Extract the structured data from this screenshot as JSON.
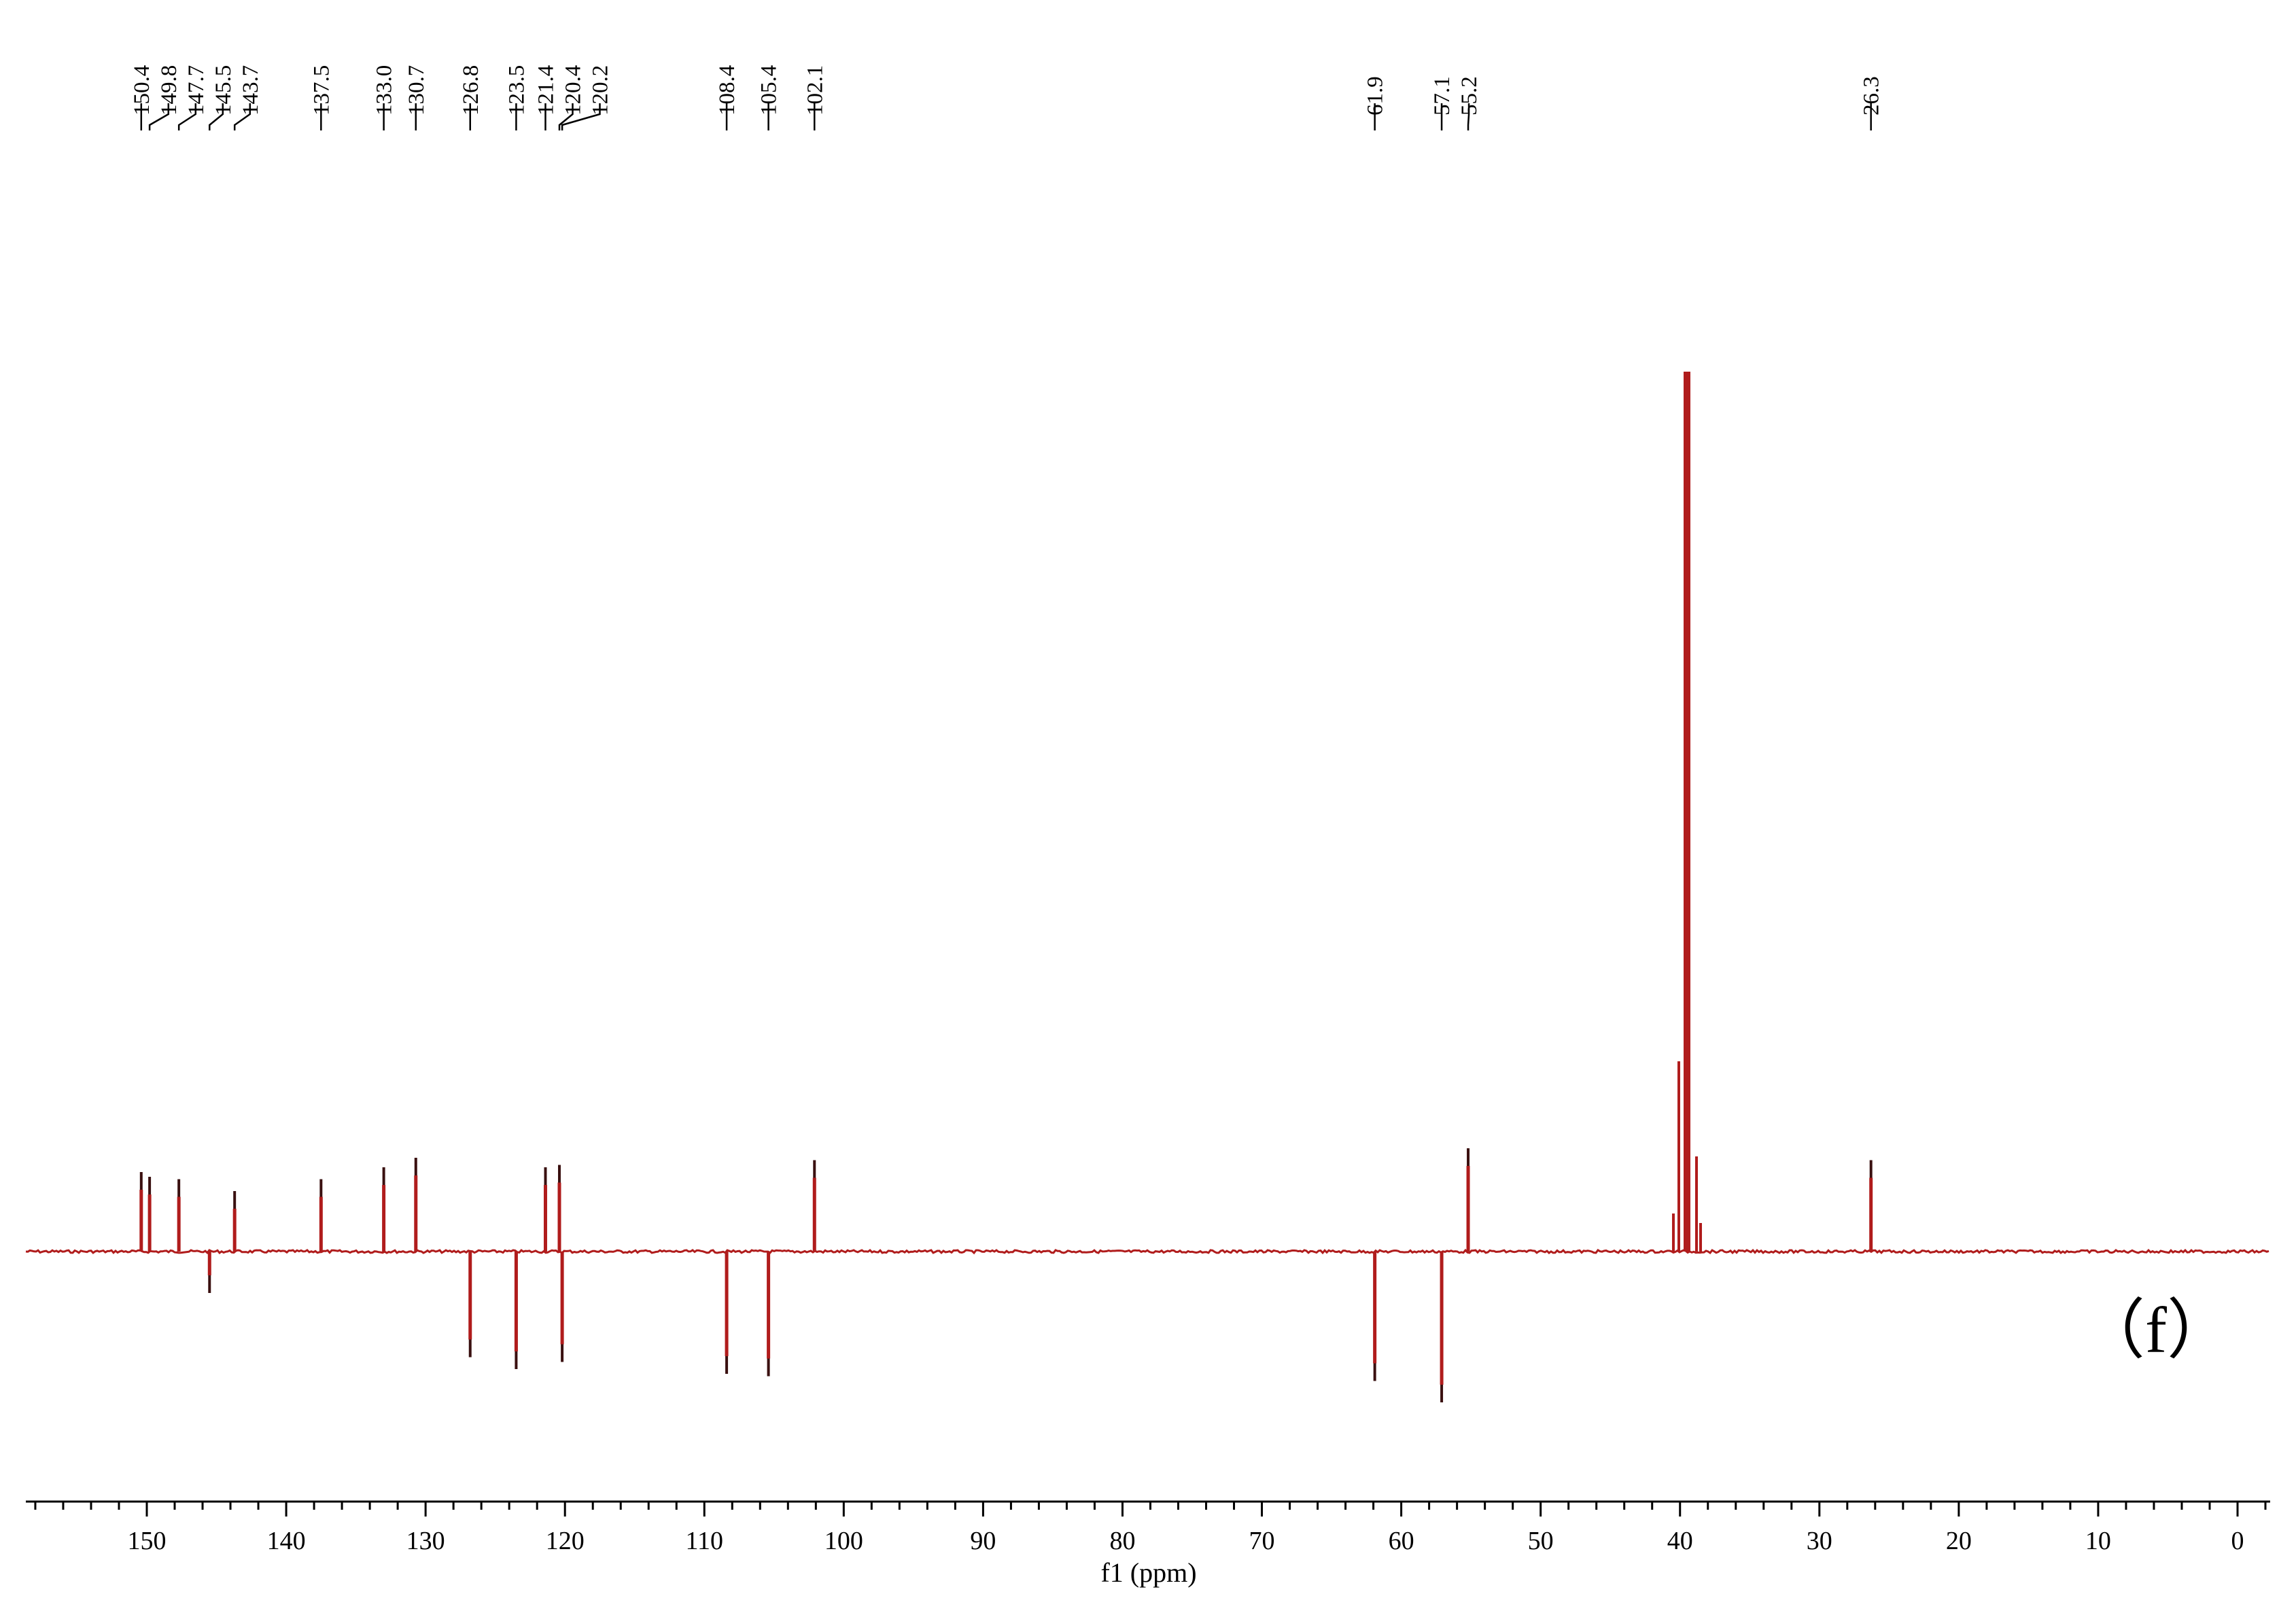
{
  "chart_data": {
    "type": "line",
    "xlabel": "f1 (ppm)",
    "x_reversed": true,
    "xlim": [
      160,
      -2
    ],
    "xticks": [
      150,
      140,
      130,
      120,
      110,
      100,
      90,
      80,
      70,
      60,
      50,
      40,
      30,
      20,
      10,
      0
    ],
    "panel_label": "（f）",
    "line_color": "#b01c1c",
    "peak_labels": [
      "150.4",
      "149.8",
      "147.7",
      "145.5",
      "143.7",
      "137.5",
      "133.0",
      "130.7",
      "126.8",
      "123.5",
      "121.4",
      "120.4",
      "120.2",
      "108.4",
      "105.4",
      "102.1",
      "61.9",
      "57.1",
      "55.2",
      "26.3"
    ],
    "peaks": [
      {
        "ppm": 150.4,
        "intensity": 0.13
      },
      {
        "ppm": 149.8,
        "intensity": 0.12
      },
      {
        "ppm": 147.7,
        "intensity": 0.115
      },
      {
        "ppm": 145.5,
        "intensity": -0.05
      },
      {
        "ppm": 143.7,
        "intensity": 0.09
      },
      {
        "ppm": 137.5,
        "intensity": 0.115
      },
      {
        "ppm": 133.0,
        "intensity": 0.14
      },
      {
        "ppm": 130.7,
        "intensity": 0.16
      },
      {
        "ppm": 126.8,
        "intensity": -0.185
      },
      {
        "ppm": 123.5,
        "intensity": -0.21
      },
      {
        "ppm": 121.4,
        "intensity": 0.14
      },
      {
        "ppm": 120.4,
        "intensity": 0.145
      },
      {
        "ppm": 120.2,
        "intensity": -0.195
      },
      {
        "ppm": 108.4,
        "intensity": -0.22
      },
      {
        "ppm": 105.4,
        "intensity": -0.225
      },
      {
        "ppm": 102.1,
        "intensity": 0.155
      },
      {
        "ppm": 61.9,
        "intensity": -0.235
      },
      {
        "ppm": 57.1,
        "intensity": -0.28
      },
      {
        "ppm": 55.2,
        "intensity": 0.18
      },
      {
        "ppm": 39.5,
        "intensity": 1.85
      },
      {
        "ppm": 26.3,
        "intensity": 0.155
      }
    ],
    "solvent_peak": {
      "ppm": 39.5
    }
  }
}
